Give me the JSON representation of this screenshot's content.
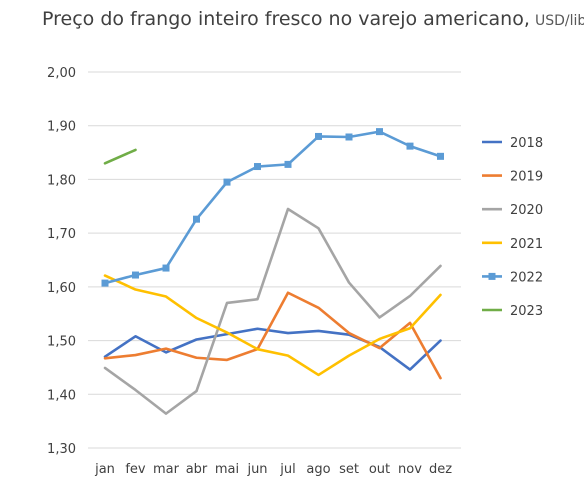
{
  "chart_data": {
    "type": "line",
    "title": "Preço do frango inteiro fresco no varejo americano,",
    "subtitle": "USD/libra",
    "xlabel": "",
    "ylabel": "",
    "categories": [
      "jan",
      "fev",
      "mar",
      "abr",
      "mai",
      "jun",
      "jul",
      "ago",
      "set",
      "out",
      "nov",
      "dez"
    ],
    "ylim": [
      1.3,
      2.0
    ],
    "yticks": [
      "2,00",
      "1,90",
      "1,80",
      "1,70",
      "1,60",
      "1,50",
      "1,40",
      "1,30"
    ],
    "ytick_values": [
      2.0,
      1.9,
      1.8,
      1.7,
      1.6,
      1.5,
      1.4,
      1.3
    ],
    "grid": true,
    "legend_position": "right",
    "series": [
      {
        "name": "2018",
        "color": "#4472C4",
        "marker": "none",
        "values": [
          1.47,
          1.508,
          1.478,
          1.502,
          1.512,
          1.522,
          1.514,
          1.518,
          1.511,
          1.488,
          1.446,
          1.5
        ]
      },
      {
        "name": "2019",
        "color": "#ED7D31",
        "marker": "none",
        "values": [
          1.467,
          1.473,
          1.485,
          1.468,
          1.464,
          1.484,
          1.589,
          1.561,
          1.514,
          1.486,
          1.533,
          1.43
        ]
      },
      {
        "name": "2020",
        "color": "#A5A5A5",
        "marker": "none",
        "values": [
          1.449,
          1.408,
          1.364,
          1.406,
          1.57,
          1.577,
          1.745,
          1.709,
          1.608,
          1.543,
          1.583,
          1.639
        ]
      },
      {
        "name": "2021",
        "color": "#FFC000",
        "marker": "none",
        "values": [
          1.621,
          1.595,
          1.582,
          1.542,
          1.515,
          1.484,
          1.472,
          1.436,
          1.472,
          1.503,
          1.523,
          1.585
        ]
      },
      {
        "name": "2022",
        "color": "#5B9BD5",
        "marker": "square",
        "values": [
          1.607,
          1.622,
          1.635,
          1.726,
          1.795,
          1.824,
          1.828,
          1.88,
          1.879,
          1.889,
          1.862,
          1.843
        ]
      },
      {
        "name": "2023",
        "color": "#70AD47",
        "marker": "none",
        "values": [
          1.83,
          1.855,
          null,
          null,
          null,
          null,
          null,
          null,
          null,
          null,
          null,
          null
        ]
      }
    ]
  }
}
